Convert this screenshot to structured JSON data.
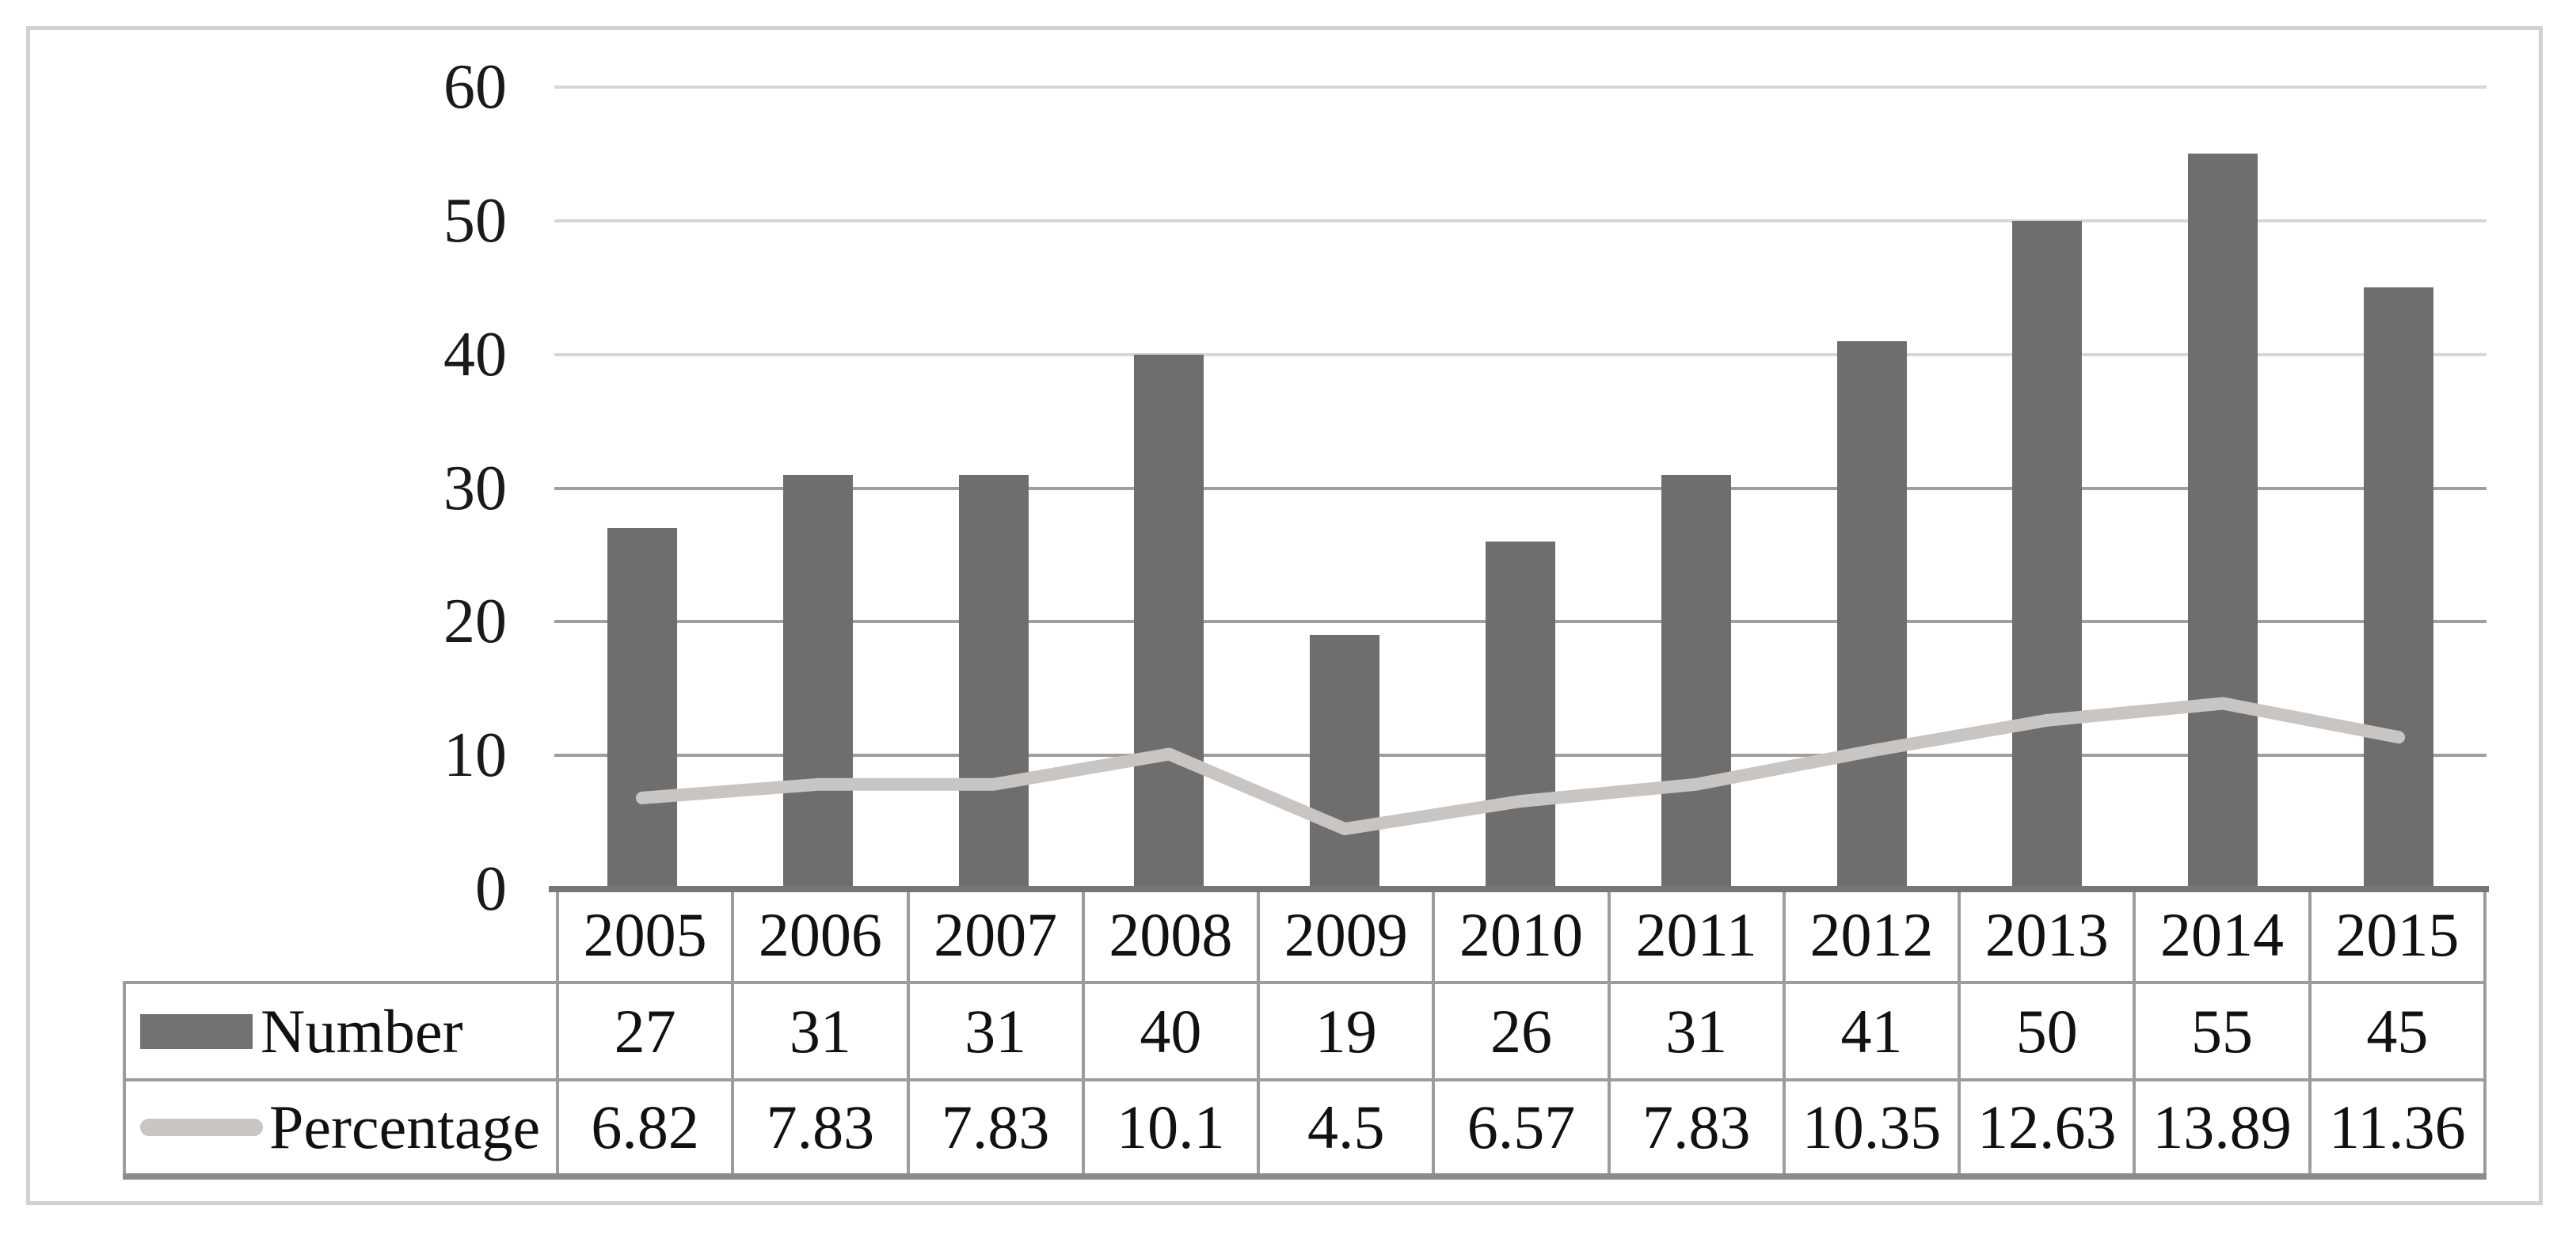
{
  "figure": {
    "legend": {
      "number_label": "Number",
      "percentage_label": "Percentage"
    },
    "table": {
      "years": [
        "2005",
        "2006",
        "2007",
        "2008",
        "2009",
        "2010",
        "2011",
        "2012",
        "2013",
        "2014",
        "2015"
      ],
      "number_row": [
        "27",
        "31",
        "31",
        "40",
        "19",
        "26",
        "31",
        "41",
        "50",
        "55",
        "45"
      ],
      "percentage_row": [
        "6.82",
        "7.83",
        "7.83",
        "10.1",
        "4.5",
        "6.57",
        "7.83",
        "10.35",
        "12.63",
        "13.89",
        "11.36"
      ]
    },
    "colors": {
      "bar": "#6e6e6e",
      "line": "#c8c5c2",
      "gridline_light": "#d7d7d7",
      "gridline_dark": "#9f9f9f",
      "axis_line": "#767676",
      "table_border": "#9c9c9c",
      "outer_frame": "#d2d2d2"
    }
  },
  "chart_data": {
    "type": "bar",
    "subtype": "combo-bar-line",
    "categories": [
      "2005",
      "2006",
      "2007",
      "2008",
      "2009",
      "2010",
      "2011",
      "2012",
      "2013",
      "2014",
      "2015"
    ],
    "series": [
      {
        "name": "Number",
        "type": "bar",
        "color": "#6e6e6e",
        "values": [
          27,
          31,
          31,
          40,
          19,
          26,
          31,
          41,
          50,
          55,
          45
        ]
      },
      {
        "name": "Percentage",
        "type": "line",
        "color": "#c8c5c2",
        "values": [
          6.82,
          7.83,
          7.83,
          10.1,
          4.5,
          6.57,
          7.83,
          10.35,
          12.63,
          13.89,
          11.36
        ]
      }
    ],
    "title": "",
    "xlabel": "",
    "ylabel": "",
    "ylim": [
      0,
      60
    ],
    "yticks": [
      60,
      50,
      40,
      30,
      20,
      10,
      0
    ],
    "grid": true,
    "legend_position": "table-left-column"
  }
}
